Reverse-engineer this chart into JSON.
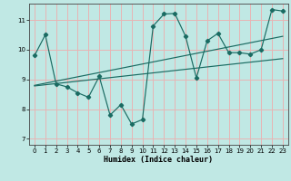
{
  "xlabel": "Humidex (Indice chaleur)",
  "bg_color": "#c0e8e4",
  "grid_color": "#e8b4b4",
  "line_color": "#1a6b62",
  "xlim": [
    -0.5,
    23.5
  ],
  "ylim": [
    6.8,
    11.55
  ],
  "xticks": [
    0,
    1,
    2,
    3,
    4,
    5,
    6,
    7,
    8,
    9,
    10,
    11,
    12,
    13,
    14,
    15,
    16,
    17,
    18,
    19,
    20,
    21,
    22,
    23
  ],
  "yticks": [
    7,
    8,
    9,
    10,
    11
  ],
  "series1_x": [
    0,
    1,
    2,
    3,
    4,
    5,
    6,
    7,
    8,
    9,
    10,
    11,
    12,
    13,
    14,
    15,
    16,
    17,
    18,
    19,
    20,
    21,
    22,
    23
  ],
  "series1_y": [
    9.8,
    10.5,
    8.85,
    8.75,
    8.55,
    8.4,
    9.1,
    7.8,
    8.15,
    7.5,
    7.65,
    10.8,
    11.2,
    11.22,
    10.45,
    9.05,
    10.3,
    10.55,
    9.9,
    9.9,
    9.85,
    10.0,
    11.35,
    11.3
  ],
  "trend1_x": [
    0,
    23
  ],
  "trend1_y": [
    8.8,
    10.45
  ],
  "trend2_x": [
    0,
    23
  ],
  "trend2_y": [
    8.78,
    9.7
  ]
}
